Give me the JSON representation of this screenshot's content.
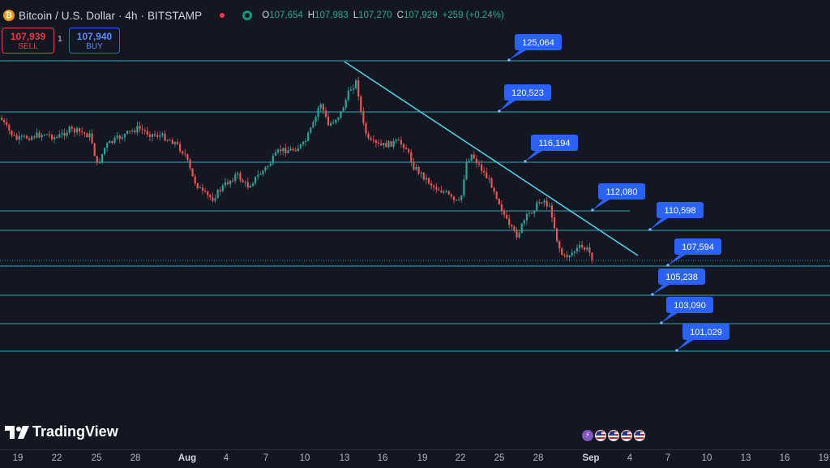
{
  "header": {
    "coin_glyph": "₿",
    "symbol_title": "Bitcoin / U.S. Dollar · 4h · BITSTAMP",
    "ohlc": [
      {
        "key": "O",
        "value": "107,654"
      },
      {
        "key": "H",
        "value": "107,983"
      },
      {
        "key": "L",
        "value": "107,270"
      },
      {
        "key": "C",
        "value": "107,929"
      }
    ],
    "change": "+259 (+0.24%)"
  },
  "trade": {
    "sell_price": "107,939",
    "sell_label": "SELL",
    "spread": "1",
    "buy_price": "107,940",
    "buy_label": "BUY"
  },
  "branding": {
    "logo_text": "TradingView"
  },
  "x_axis": {
    "ticks": [
      "19",
      "22",
      "25",
      "28",
      "Aug",
      "4",
      "7",
      "10",
      "13",
      "16",
      "19",
      "22",
      "25",
      "28",
      "Sep",
      "4",
      "7",
      "10",
      "13",
      "16",
      "19"
    ],
    "bold_ticks": [
      "Aug",
      "Sep"
    ]
  },
  "events": [
    "lightning-icon",
    "us-flag-icon",
    "us-flag-icon",
    "us-flag-icon",
    "us-flag-icon"
  ],
  "colors": {
    "background": "#131722",
    "level_line": "#26c6da",
    "callout": "#2962ff",
    "up_candle": "#26a69a",
    "down_candle": "#ef5350",
    "sell": "#f23645",
    "buy": "#2962ff"
  },
  "levels": [
    {
      "label": "125,064"
    },
    {
      "label": "120,523"
    },
    {
      "label": "116,194"
    },
    {
      "label": "112,080"
    },
    {
      "label": "110,598"
    },
    {
      "label": "107,594"
    },
    {
      "label": "105,238"
    },
    {
      "label": "103,090"
    },
    {
      "label": "101,029"
    }
  ],
  "trendline": {
    "start_date": "Aug 13",
    "end_date": "Sep 5"
  }
}
